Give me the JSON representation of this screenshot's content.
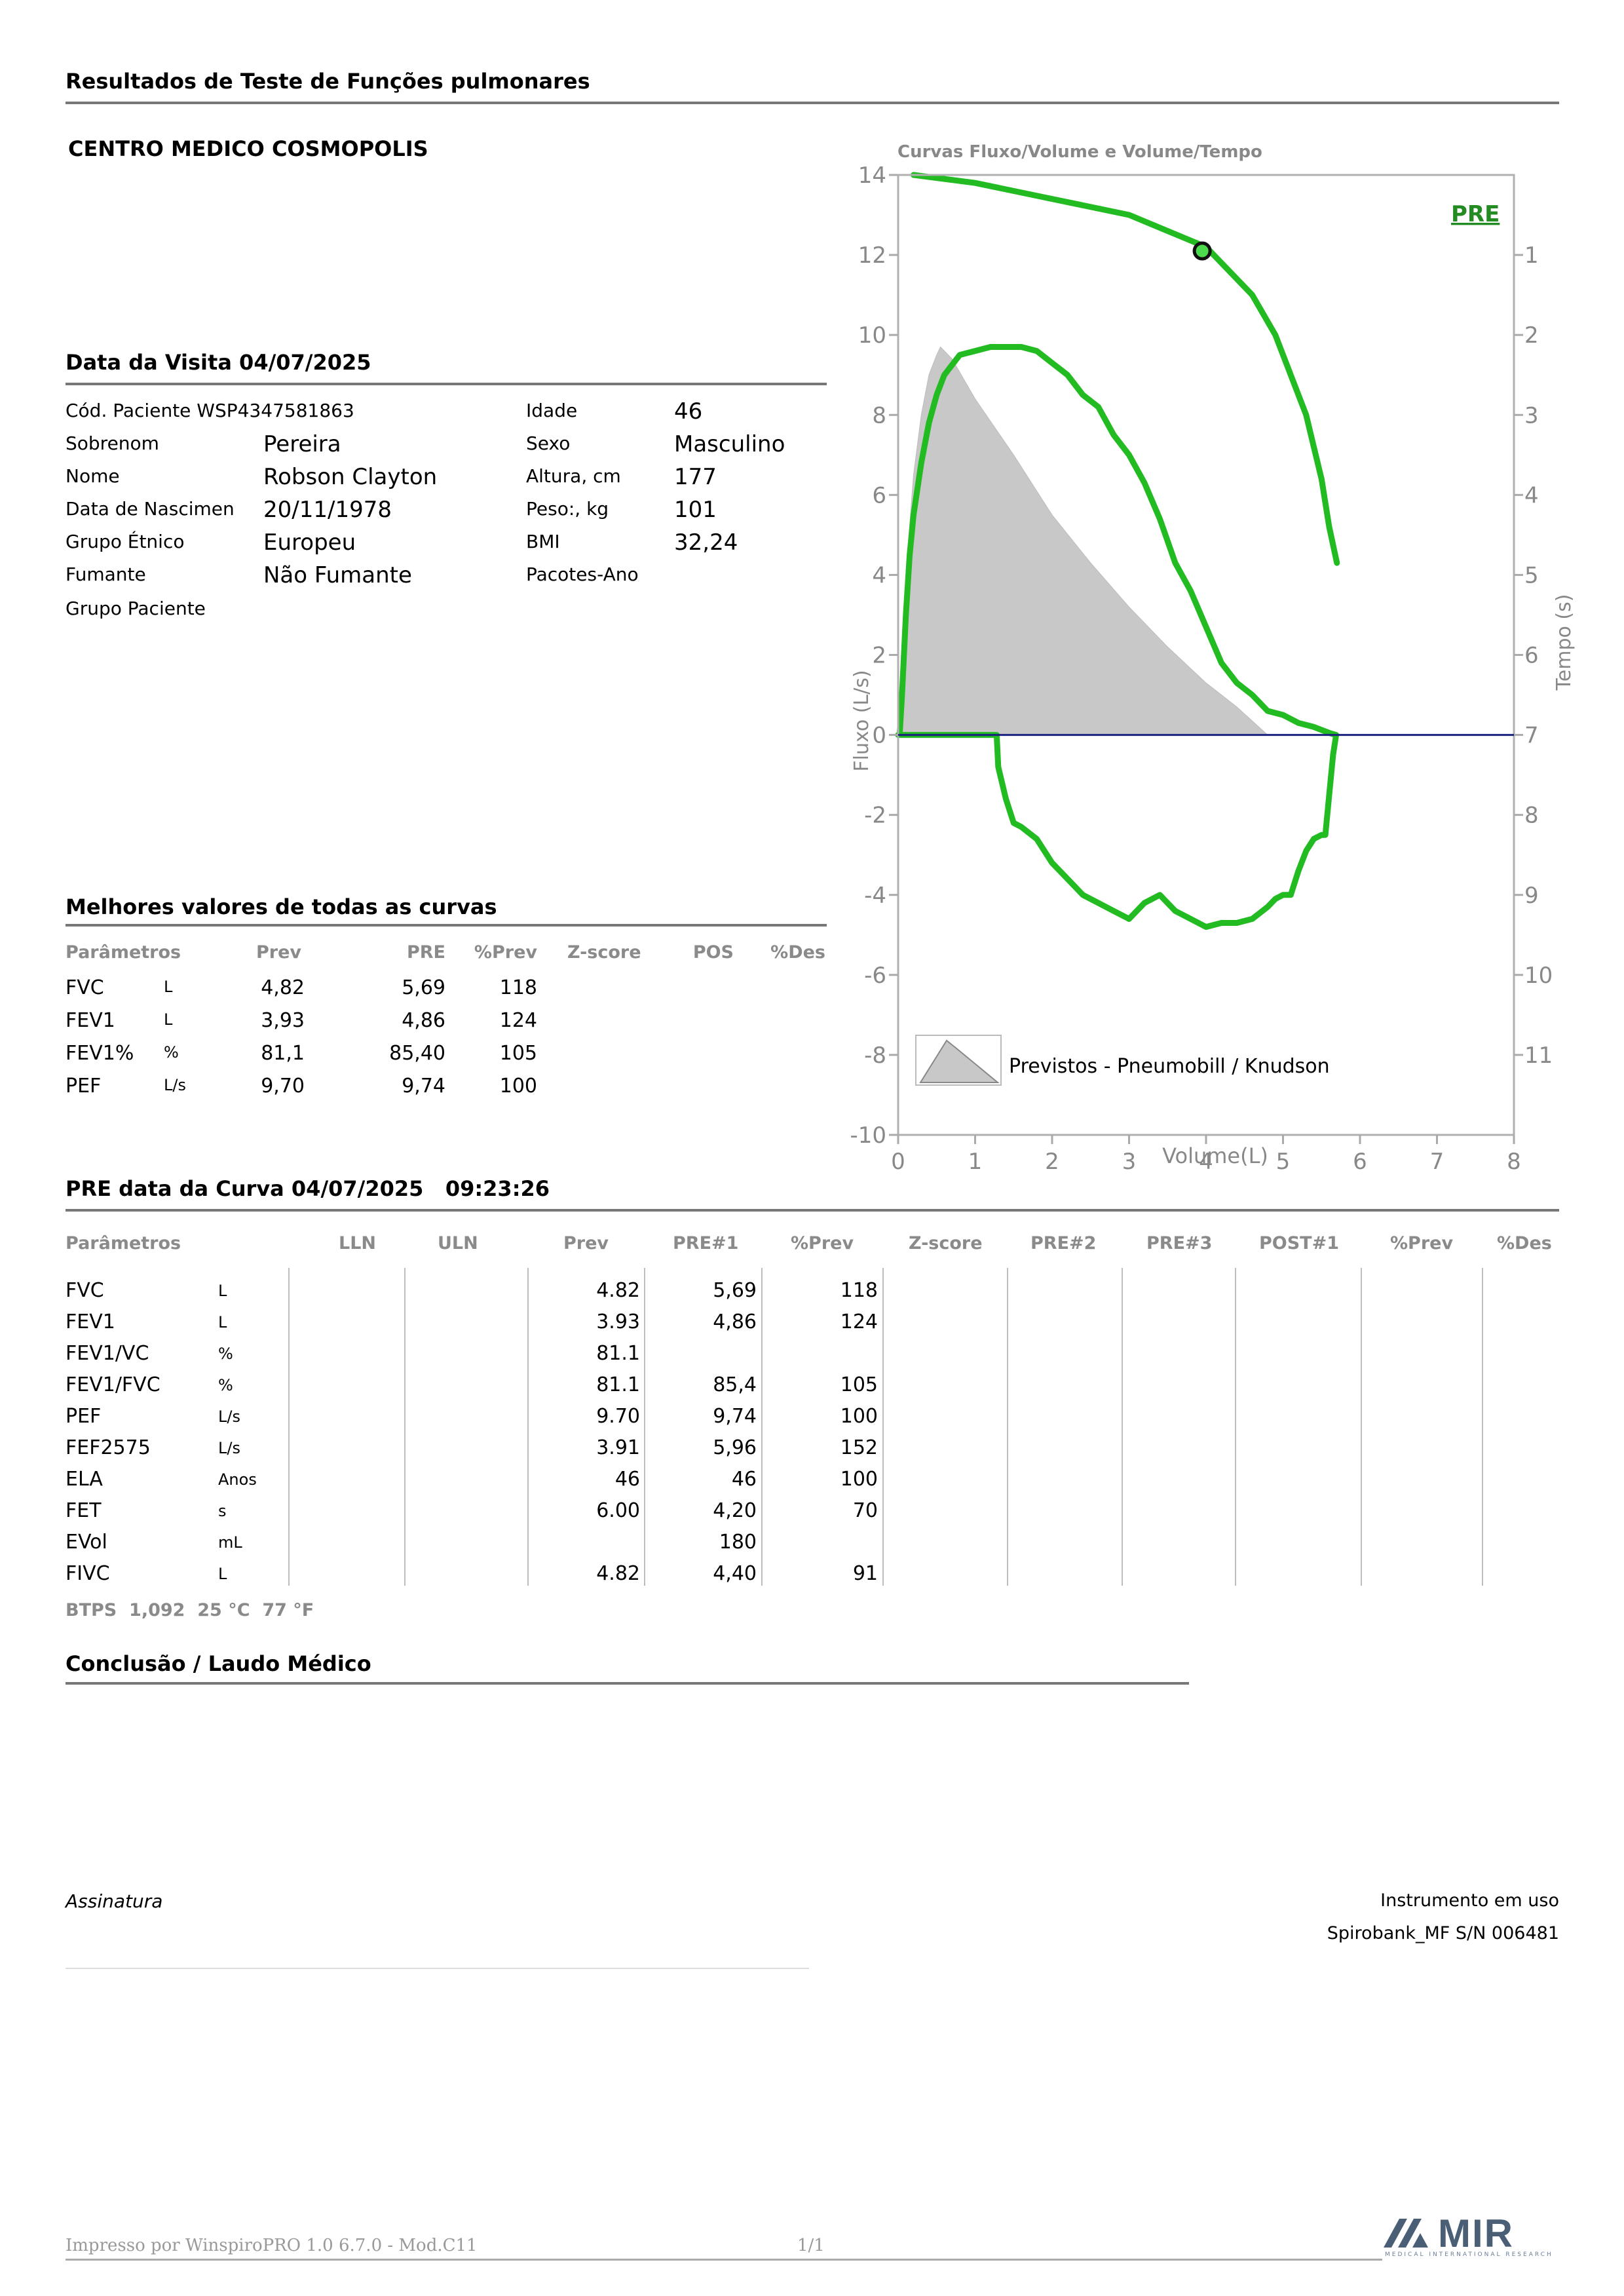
{
  "report_title": "Resultados de Teste de Funções pulmonares",
  "clinic": "CENTRO MEDICO COSMOPOLIS",
  "visit": {
    "title": "Data da Visita 04/07/2025",
    "left": [
      {
        "label": "Cód. Paciente WSP4347581863",
        "value": ""
      },
      {
        "label": "Sobrenom",
        "value": "Pereira"
      },
      {
        "label": "Nome",
        "value": "Robson Clayton"
      },
      {
        "label": "Data de Nascimen",
        "value": "20/11/1978"
      },
      {
        "label": "Grupo Étnico",
        "value": "Europeu"
      },
      {
        "label": "Fumante",
        "value": "Não Fumante"
      },
      {
        "label": "Grupo Paciente",
        "value": ""
      }
    ],
    "right": [
      {
        "label": "Idade",
        "value": "46"
      },
      {
        "label": "Sexo",
        "value": "Masculino"
      },
      {
        "label": "Altura, cm",
        "value": "177"
      },
      {
        "label": "Peso:, kg",
        "value": "101"
      },
      {
        "label": "BMI",
        "value": "32,24"
      },
      {
        "label": "Pacotes-Ano",
        "value": ""
      }
    ]
  },
  "best": {
    "title": "Melhores valores de todas as curvas",
    "headers": [
      "Parâmetros",
      "Prev",
      "PRE",
      "%Prev",
      "Z-score",
      "POS",
      "%Des"
    ],
    "rows": [
      {
        "param": "FVC",
        "unit": "L",
        "prev": "4,82",
        "pre": "5,69",
        "pct": "118"
      },
      {
        "param": "FEV1",
        "unit": "L",
        "prev": "3,93",
        "pre": "4,86",
        "pct": "124"
      },
      {
        "param": "FEV1%",
        "unit": "%",
        "prev": "81,1",
        "pre": "85,40",
        "pct": "105"
      },
      {
        "param": "PEF",
        "unit": "L/s",
        "prev": "9,70",
        "pre": "9,74",
        "pct": "100"
      }
    ]
  },
  "curve": {
    "title": "PRE data da Curva 04/07/2025   09:23:26",
    "headers": [
      "Parâmetros",
      "LLN",
      "ULN",
      "Prev",
      "PRE#1",
      "%Prev",
      "Z-score",
      "PRE#2",
      "PRE#3",
      "POST#1",
      "%Prev",
      "%Des"
    ],
    "rows": [
      {
        "param": "FVC",
        "unit": "L",
        "prev": "4.82",
        "pre": "5,69",
        "pct": "118"
      },
      {
        "param": "FEV1",
        "unit": "L",
        "prev": "3.93",
        "pre": "4,86",
        "pct": "124"
      },
      {
        "param": "FEV1/VC",
        "unit": "%",
        "prev": "81.1",
        "pre": "",
        "pct": ""
      },
      {
        "param": "FEV1/FVC",
        "unit": "%",
        "prev": "81.1",
        "pre": "85,4",
        "pct": "105"
      },
      {
        "param": "PEF",
        "unit": "L/s",
        "prev": "9.70",
        "pre": "9,74",
        "pct": "100"
      },
      {
        "param": "FEF2575",
        "unit": "L/s",
        "prev": "3.91",
        "pre": "5,96",
        "pct": "152"
      },
      {
        "param": "ELA",
        "unit": "Anos",
        "prev": "46",
        "pre": "46",
        "pct": "100"
      },
      {
        "param": "FET",
        "unit": "s",
        "prev": "6.00",
        "pre": "4,20",
        "pct": "70"
      },
      {
        "param": "EVol",
        "unit": "mL",
        "prev": "",
        "pre": "180",
        "pct": ""
      },
      {
        "param": "FIVC",
        "unit": "L",
        "prev": "4.82",
        "pre": "4,40",
        "pct": "91"
      }
    ],
    "btps": "BTPS  1,092  25 °C  77 °F"
  },
  "conclusion_title": "Conclusão / Laudo Médico",
  "signature": "Assinatura",
  "instrument_label": "Instrumento em uso",
  "instrument": "Spirobank_MF S/N 006481",
  "footer": {
    "printed_by": "Impresso por WinspiroPRO 1.0 6.7.0 - Mod.C11",
    "page": "1/1"
  },
  "logo": {
    "text": "MIR",
    "subtitle": "MEDICAL INTERNATIONAL RESEARCH"
  },
  "chart_data": {
    "type": "line",
    "title": "Curvas Fluxo/Volume e Volume/Tempo",
    "xlabel": "Volume(L)",
    "ylabel": "Fluxo (L/s)",
    "y2label": "Tempo (s)",
    "xlim": [
      0,
      8
    ],
    "ylim": [
      -10,
      14
    ],
    "xticks": [
      "0",
      "1",
      "2",
      "3",
      "4",
      "5",
      "6",
      "7",
      "8"
    ],
    "yticks": [
      "-10",
      "-8",
      "-6",
      "-4",
      "-2",
      "0",
      "2",
      "4",
      "6",
      "8",
      "10",
      "12",
      "14"
    ],
    "y2ticks": [
      "1",
      "2",
      "3",
      "4",
      "5",
      "6",
      "7",
      "8",
      "9",
      "10",
      "11"
    ],
    "badge": "PRE",
    "legend": "Previstos - Pneumobill / Knudson",
    "series": [
      {
        "name": "PRE",
        "color": "#22bb22",
        "x": [
          0.02,
          0.05,
          0.1,
          0.15,
          0.2,
          0.3,
          0.4,
          0.5,
          0.6,
          0.8,
          1.0,
          1.2,
          1.4,
          1.6,
          1.8,
          2.0,
          2.2,
          2.4,
          2.6,
          2.8,
          3.0,
          3.2,
          3.4,
          3.6,
          3.8,
          4.0,
          4.2,
          4.4,
          4.6,
          4.8,
          5.0,
          5.2,
          5.4,
          5.6,
          5.69,
          5.65,
          5.6,
          5.55,
          5.5,
          5.4,
          5.3,
          5.2,
          5.1,
          5.0,
          4.9,
          4.8,
          4.6,
          4.4,
          4.2,
          4.0,
          3.8,
          3.6,
          3.4,
          3.2,
          3.0,
          2.8,
          2.6,
          2.4,
          2.2,
          2.0,
          1.8,
          1.6,
          1.5,
          1.4,
          1.3,
          1.28,
          1.0,
          0.5,
          0.0
        ],
        "y": [
          0,
          1.0,
          3.0,
          4.5,
          5.5,
          6.8,
          7.8,
          8.5,
          9.0,
          9.5,
          9.6,
          9.7,
          9.7,
          9.7,
          9.6,
          9.3,
          9.0,
          8.5,
          8.2,
          7.5,
          7.0,
          6.3,
          5.4,
          4.3,
          3.6,
          2.7,
          1.8,
          1.3,
          1.0,
          0.6,
          0.5,
          0.3,
          0.2,
          0.05,
          0,
          -0.5,
          -1.5,
          -2.5,
          -2.5,
          -2.6,
          -2.9,
          -3.4,
          -4.0,
          -4.0,
          -4.1,
          -4.3,
          -4.6,
          -4.7,
          -4.7,
          -4.8,
          -4.6,
          -4.4,
          -4.0,
          -4.2,
          -4.6,
          -4.4,
          -4.2,
          -4.0,
          -3.6,
          -3.2,
          -2.6,
          -2.3,
          -2.2,
          -1.6,
          -0.8,
          0,
          0,
          0,
          0
        ]
      },
      {
        "name": "Tempo",
        "color": "#22bb22",
        "x": [
          0.2,
          1.0,
          2.0,
          3.0,
          3.5,
          4.0,
          4.3,
          4.6,
          4.9,
          5.1,
          5.3,
          5.4,
          5.5,
          5.6,
          5.7
        ],
        "y": [
          0.0,
          0.1,
          0.3,
          0.5,
          0.7,
          0.9,
          1.2,
          1.5,
          2.0,
          2.5,
          3.0,
          3.4,
          3.8,
          4.4,
          4.85
        ]
      },
      {
        "name": "Previstos - Pneumobill / Knudson",
        "color": "#c8c8c8",
        "x": [
          0.05,
          0.1,
          0.2,
          0.3,
          0.4,
          0.5,
          0.55,
          0.7,
          1.0,
          1.5,
          2.0,
          2.5,
          3.0,
          3.5,
          4.0,
          4.4,
          4.8,
          0.05
        ],
        "y": [
          0,
          4.0,
          6.5,
          8.0,
          9.0,
          9.5,
          9.7,
          9.4,
          8.4,
          7.0,
          5.5,
          4.3,
          3.2,
          2.2,
          1.3,
          0.7,
          0,
          0
        ]
      }
    ],
    "markers": [
      {
        "x": 3.95,
        "y": 12.1
      }
    ]
  }
}
